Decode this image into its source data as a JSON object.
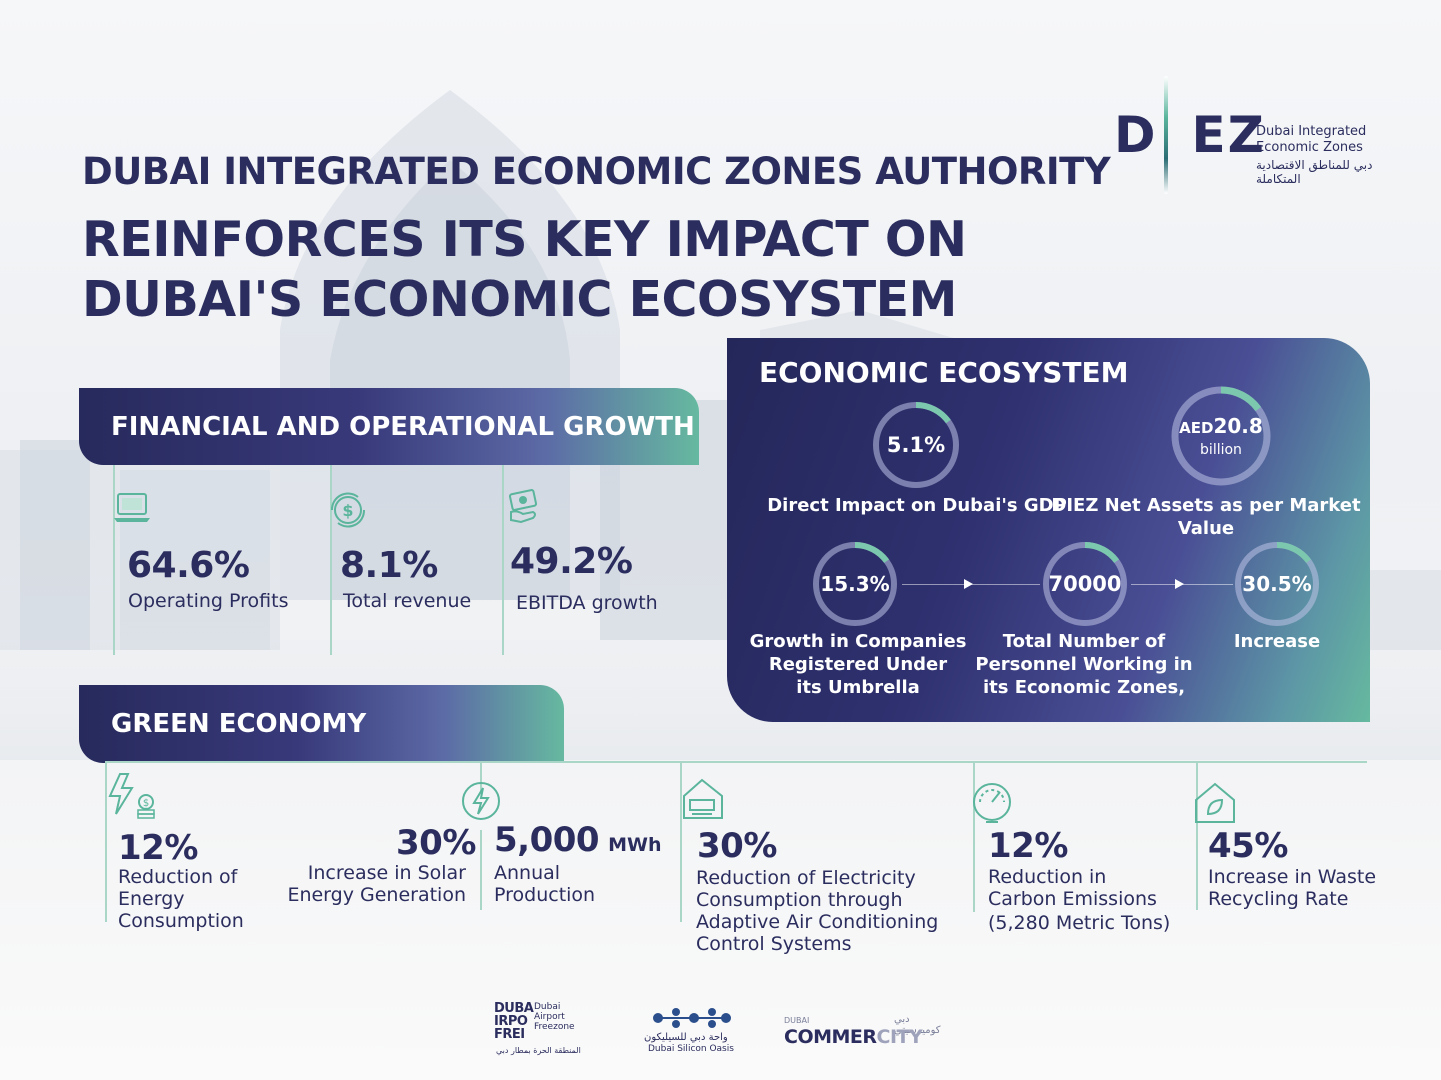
{
  "header": {
    "title_line1": "DUBAI INTEGRATED ECONOMIC ZONES AUTHORITY",
    "title_line2": "REINFORCES ITS KEY IMPACT ON DUBAI'S ECONOMIC ECOSYSTEM"
  },
  "logo": {
    "letters_left": "D",
    "letters_right": "EZ",
    "name_line1": "Dubai Integrated",
    "name_line2": "Economic Zones",
    "arabic": "دبي للمناطق الاقتصادية المتكاملة"
  },
  "financial": {
    "heading": "FINANCIAL AND OPERATIONAL GROWTH",
    "items": [
      {
        "value": "64.6%",
        "label": "Operating Profits",
        "icon": "laptop-icon"
      },
      {
        "value": "8.1%",
        "label": "Total revenue",
        "icon": "dollar-cycle-icon"
      },
      {
        "value": "49.2%",
        "label": "EBITDA growth",
        "icon": "money-hand-icon"
      }
    ]
  },
  "ecosystem": {
    "heading": "ECONOMIC ECOSYSTEM",
    "gdp": {
      "value": "5.1%",
      "label": "Direct Impact on Dubai's GDP",
      "fill": 0.15
    },
    "assets": {
      "prefix": "AED",
      "value": "20.8",
      "unit": "billion",
      "label": "DIEZ Net Assets as per Market Value",
      "fill": 0.15
    },
    "companies": {
      "value": "15.3%",
      "label_line1": "Growth in Companies",
      "label_line2": "Registered Under",
      "label_line3": "its Umbrella",
      "fill": 0.15
    },
    "personnel": {
      "value": "70000",
      "label_line1": "Total Number of",
      "label_line2": "Personnel Working in",
      "label_line3": "its Economic Zones,",
      "fill": 0.15
    },
    "increase": {
      "value": "30.5%",
      "label": "Increase",
      "fill": 0.15
    }
  },
  "green": {
    "heading": "GREEN ECONOMY",
    "energy": {
      "value": "12%",
      "label_line1": "Reduction of",
      "label_line2": "Energy",
      "label_line3": "Consumption"
    },
    "solar": {
      "value": "30%",
      "label_line1": "Increase in Solar",
      "label_line2": "Energy Generation"
    },
    "production": {
      "value": "5,000",
      "unit": "MWh",
      "label_line1": "Annual",
      "label_line2": "Production"
    },
    "electricity": {
      "value": "30%",
      "label_line1": "Reduction of Electricity",
      "label_line2": "Consumption through",
      "label_line3": "Adaptive Air Conditioning",
      "label_line4": "Control Systems"
    },
    "carbon": {
      "value": "12%",
      "label_line1": "Reduction in",
      "label_line2": "Carbon Emissions",
      "label_line3": "(5,280 Metric Tons)"
    },
    "waste": {
      "value": "45%",
      "label_line1": "Increase in Waste",
      "label_line2": "Recycling Rate"
    }
  },
  "footer": {
    "airport": {
      "mark_line1": "DUBA",
      "mark_line2": "IRPO",
      "mark_line3": "FREI",
      "name_line1": "Dubai",
      "name_line2": "Airport",
      "name_line3": "Freezone",
      "arabic": "المنطقة الحرة بمطار دبي"
    },
    "silicon": {
      "arabic": "واحة دبي للسيليكون",
      "name": "Dubai Silicon Oasis"
    },
    "commercity": {
      "small": "DUBAI",
      "arabic": "دبي كوميرسيتي",
      "name_a": "COMMER",
      "name_b": "CITY"
    }
  }
}
